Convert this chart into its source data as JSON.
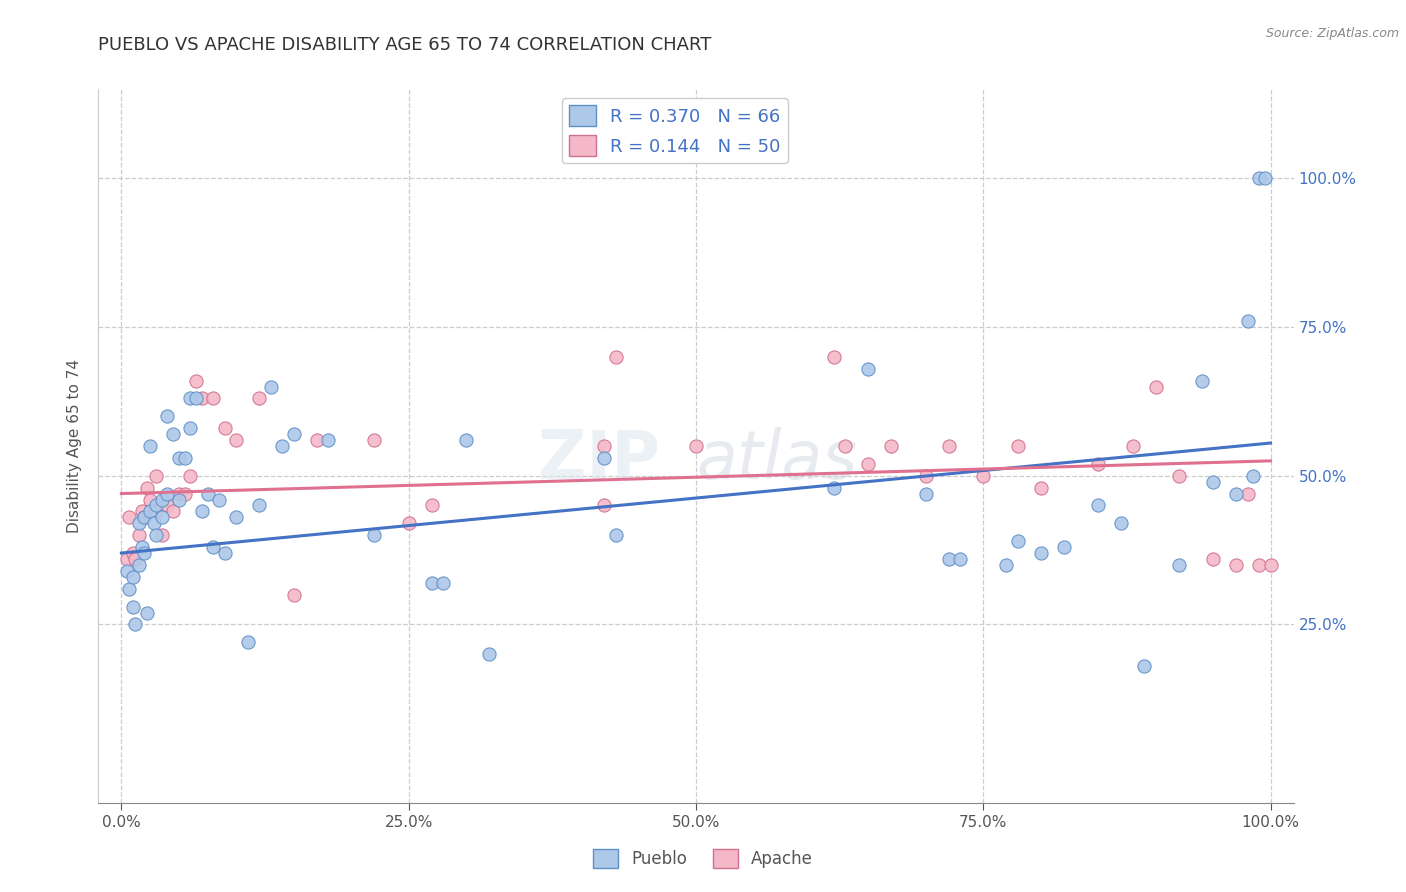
{
  "title": "PUEBLO VS APACHE DISABILITY AGE 65 TO 74 CORRELATION CHART",
  "ylabel": "Disability Age 65 to 74",
  "source_text": "Source: ZipAtlas.com",
  "watermark_line1": "ZIP",
  "watermark_line2": "atlas",
  "pueblo_R": 0.37,
  "pueblo_N": 66,
  "apache_R": 0.144,
  "apache_N": 50,
  "pueblo_color": "#adc8e8",
  "apache_color": "#f5b8c8",
  "pueblo_edge_color": "#6090c8",
  "apache_edge_color": "#d07090",
  "pueblo_line_color": "#4472c4",
  "apache_line_color": "#e07090",
  "title_color": "#333333",
  "background_color": "#ffffff",
  "grid_color": "#cccccc",
  "xlim": [
    -0.02,
    1.02
  ],
  "ylim": [
    -0.05,
    1.15
  ],
  "pueblo_trend_start": 0.37,
  "pueblo_trend_end": 0.555,
  "apache_trend_start": 0.47,
  "apache_trend_end": 0.525,
  "legend_label_pueblo": "Pueblo",
  "legend_label_apache": "Apache",
  "pueblo_x": [
    0.005,
    0.007,
    0.01,
    0.01,
    0.012,
    0.015,
    0.015,
    0.018,
    0.02,
    0.02,
    0.022,
    0.025,
    0.025,
    0.028,
    0.03,
    0.03,
    0.035,
    0.035,
    0.04,
    0.04,
    0.045,
    0.05,
    0.05,
    0.055,
    0.06,
    0.06,
    0.065,
    0.07,
    0.075,
    0.08,
    0.085,
    0.09,
    0.1,
    0.11,
    0.12,
    0.13,
    0.14,
    0.15,
    0.18,
    0.22,
    0.27,
    0.28,
    0.3,
    0.32,
    0.42,
    0.43,
    0.62,
    0.65,
    0.7,
    0.72,
    0.73,
    0.77,
    0.78,
    0.8,
    0.82,
    0.85,
    0.87,
    0.89,
    0.92,
    0.94,
    0.95,
    0.97,
    0.98,
    0.985,
    0.99,
    0.995
  ],
  "pueblo_y": [
    0.34,
    0.31,
    0.28,
    0.33,
    0.25,
    0.35,
    0.42,
    0.38,
    0.37,
    0.43,
    0.27,
    0.55,
    0.44,
    0.42,
    0.4,
    0.45,
    0.46,
    0.43,
    0.6,
    0.47,
    0.57,
    0.46,
    0.53,
    0.53,
    0.58,
    0.63,
    0.63,
    0.44,
    0.47,
    0.38,
    0.46,
    0.37,
    0.43,
    0.22,
    0.45,
    0.65,
    0.55,
    0.57,
    0.56,
    0.4,
    0.32,
    0.32,
    0.56,
    0.2,
    0.53,
    0.4,
    0.48,
    0.68,
    0.47,
    0.36,
    0.36,
    0.35,
    0.39,
    0.37,
    0.38,
    0.45,
    0.42,
    0.18,
    0.35,
    0.66,
    0.49,
    0.47,
    0.76,
    0.5,
    1.0,
    1.0
  ],
  "apache_x": [
    0.005,
    0.007,
    0.01,
    0.012,
    0.015,
    0.018,
    0.02,
    0.022,
    0.025,
    0.03,
    0.03,
    0.035,
    0.04,
    0.045,
    0.05,
    0.055,
    0.06,
    0.065,
    0.07,
    0.08,
    0.09,
    0.1,
    0.12,
    0.15,
    0.17,
    0.22,
    0.25,
    0.27,
    0.42,
    0.43,
    0.5,
    0.62,
    0.63,
    0.7,
    0.72,
    0.78,
    0.8,
    0.85,
    0.88,
    0.9,
    0.92,
    0.95,
    0.97,
    0.98,
    0.99,
    1.0,
    0.42,
    0.65,
    0.67,
    0.75
  ],
  "apache_y": [
    0.36,
    0.43,
    0.37,
    0.36,
    0.4,
    0.44,
    0.43,
    0.48,
    0.46,
    0.44,
    0.5,
    0.4,
    0.45,
    0.44,
    0.47,
    0.47,
    0.5,
    0.66,
    0.63,
    0.63,
    0.58,
    0.56,
    0.63,
    0.3,
    0.56,
    0.56,
    0.42,
    0.45,
    0.45,
    0.7,
    0.55,
    0.7,
    0.55,
    0.5,
    0.55,
    0.55,
    0.48,
    0.52,
    0.55,
    0.65,
    0.5,
    0.36,
    0.35,
    0.47,
    0.35,
    0.35,
    0.55,
    0.52,
    0.55,
    0.5
  ]
}
